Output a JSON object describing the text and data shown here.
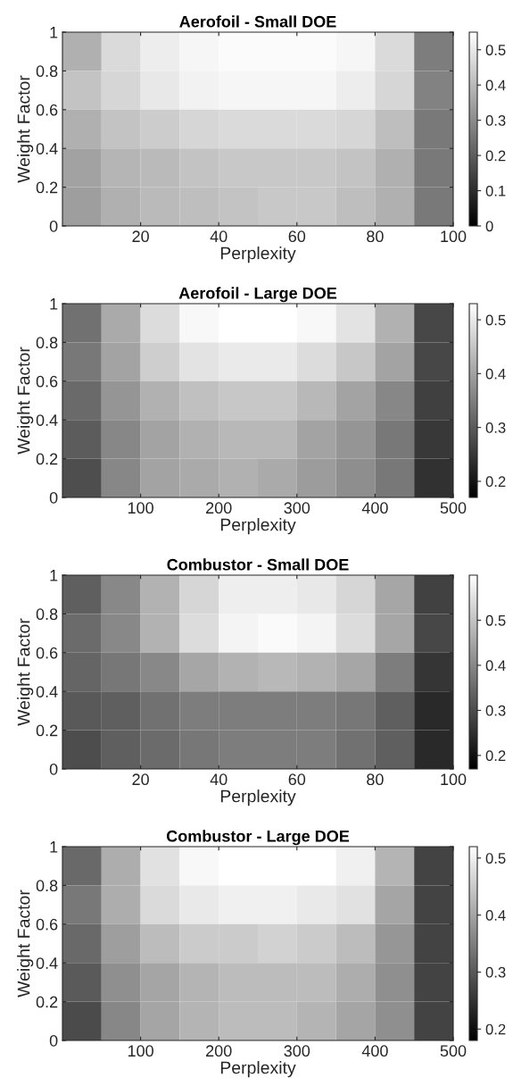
{
  "chart_data": [
    {
      "type": "heatmap",
      "title": "Aerofoil - Small DOE",
      "xlabel": "Perplexity",
      "ylabel": "Weight Factor",
      "x": [
        5,
        15,
        25,
        35,
        45,
        55,
        65,
        75,
        85,
        95
      ],
      "y": [
        0.9,
        0.7,
        0.5,
        0.3,
        0.1
      ],
      "xlim": [
        0,
        100
      ],
      "xticks": [
        20,
        40,
        60,
        80,
        100
      ],
      "ylim": [
        0,
        1
      ],
      "yticks": [
        0,
        0.2,
        0.4,
        0.6,
        0.8,
        1
      ],
      "clim": [
        0,
        0.55
      ],
      "cticks": [
        0,
        0.1,
        0.2,
        0.3,
        0.4,
        0.5
      ],
      "cells": [
        [
          0.38,
          0.47,
          0.51,
          0.53,
          0.54,
          0.54,
          0.54,
          0.53,
          0.47,
          0.27
        ],
        [
          0.42,
          0.46,
          0.5,
          0.52,
          0.53,
          0.53,
          0.53,
          0.51,
          0.46,
          0.28
        ],
        [
          0.38,
          0.42,
          0.44,
          0.46,
          0.47,
          0.47,
          0.47,
          0.46,
          0.41,
          0.26
        ],
        [
          0.35,
          0.39,
          0.4,
          0.42,
          0.43,
          0.43,
          0.43,
          0.42,
          0.38,
          0.26
        ],
        [
          0.34,
          0.38,
          0.4,
          0.41,
          0.42,
          0.43,
          0.43,
          0.41,
          0.38,
          0.26
        ]
      ]
    },
    {
      "type": "heatmap",
      "title": "Aerofoil - Large DOE",
      "xlabel": "Perplexity",
      "ylabel": "Weight Factor",
      "x": [
        25,
        75,
        125,
        175,
        225,
        275,
        325,
        375,
        425,
        475
      ],
      "y": [
        0.9,
        0.7,
        0.5,
        0.3,
        0.1
      ],
      "xlim": [
        0,
        500
      ],
      "xticks": [
        100,
        200,
        300,
        400,
        500
      ],
      "ylim": [
        0,
        1
      ],
      "yticks": [
        0,
        0.2,
        0.4,
        0.6,
        0.8,
        1
      ],
      "clim": [
        0.17,
        0.53
      ],
      "cticks": [
        0.2,
        0.3,
        0.4,
        0.5
      ],
      "cells": [
        [
          0.33,
          0.41,
          0.48,
          0.52,
          0.53,
          0.53,
          0.52,
          0.49,
          0.42,
          0.27
        ],
        [
          0.34,
          0.4,
          0.46,
          0.49,
          0.5,
          0.5,
          0.48,
          0.45,
          0.4,
          0.27
        ],
        [
          0.32,
          0.38,
          0.42,
          0.44,
          0.45,
          0.45,
          0.43,
          0.4,
          0.36,
          0.26
        ],
        [
          0.3,
          0.36,
          0.4,
          0.42,
          0.43,
          0.43,
          0.4,
          0.38,
          0.34,
          0.25
        ],
        [
          0.28,
          0.36,
          0.4,
          0.41,
          0.42,
          0.41,
          0.39,
          0.37,
          0.34,
          0.24
        ]
      ]
    },
    {
      "type": "heatmap",
      "title": "Combustor - Small DOE",
      "xlabel": "Perplexity",
      "ylabel": "Weight Factor",
      "x": [
        5,
        15,
        25,
        35,
        45,
        55,
        65,
        75,
        85,
        95
      ],
      "y": [
        0.9,
        0.7,
        0.5,
        0.3,
        0.1
      ],
      "xlim": [
        0,
        100
      ],
      "xticks": [
        20,
        40,
        60,
        80,
        100
      ],
      "ylim": [
        0,
        1
      ],
      "yticks": [
        0,
        0.2,
        0.4,
        0.6,
        0.8,
        1
      ],
      "clim": [
        0.17,
        0.6
      ],
      "cticks": [
        0.2,
        0.3,
        0.4,
        0.5
      ],
      "cells": [
        [
          0.33,
          0.4,
          0.47,
          0.53,
          0.57,
          0.57,
          0.56,
          0.53,
          0.45,
          0.28
        ],
        [
          0.35,
          0.4,
          0.47,
          0.54,
          0.58,
          0.59,
          0.58,
          0.54,
          0.45,
          0.29
        ],
        [
          0.34,
          0.37,
          0.4,
          0.45,
          0.47,
          0.48,
          0.47,
          0.45,
          0.38,
          0.26
        ],
        [
          0.32,
          0.33,
          0.36,
          0.38,
          0.38,
          0.38,
          0.38,
          0.37,
          0.33,
          0.24
        ],
        [
          0.3,
          0.33,
          0.35,
          0.37,
          0.38,
          0.38,
          0.38,
          0.36,
          0.33,
          0.24
        ]
      ]
    },
    {
      "type": "heatmap",
      "title": "Combustor - Large DOE",
      "xlabel": "Perplexity",
      "ylabel": "Weight Factor",
      "x": [
        25,
        75,
        125,
        175,
        225,
        275,
        325,
        375,
        425,
        475
      ],
      "y": [
        0.9,
        0.7,
        0.5,
        0.3,
        0.1
      ],
      "xlim": [
        0,
        500
      ],
      "xticks": [
        100,
        200,
        300,
        400,
        500
      ],
      "ylim": [
        0,
        1
      ],
      "yticks": [
        0,
        0.2,
        0.4,
        0.6,
        0.8,
        1
      ],
      "clim": [
        0.18,
        0.52
      ],
      "cticks": [
        0.2,
        0.3,
        0.4,
        0.5
      ],
      "cells": [
        [
          0.32,
          0.41,
          0.48,
          0.51,
          0.52,
          0.52,
          0.52,
          0.5,
          0.42,
          0.27
        ],
        [
          0.34,
          0.41,
          0.47,
          0.49,
          0.5,
          0.5,
          0.49,
          0.48,
          0.4,
          0.27
        ],
        [
          0.32,
          0.39,
          0.43,
          0.45,
          0.45,
          0.46,
          0.45,
          0.43,
          0.38,
          0.27
        ],
        [
          0.3,
          0.37,
          0.4,
          0.42,
          0.43,
          0.43,
          0.43,
          0.41,
          0.37,
          0.27
        ],
        [
          0.28,
          0.36,
          0.4,
          0.42,
          0.43,
          0.43,
          0.42,
          0.4,
          0.37,
          0.27
        ]
      ]
    }
  ]
}
